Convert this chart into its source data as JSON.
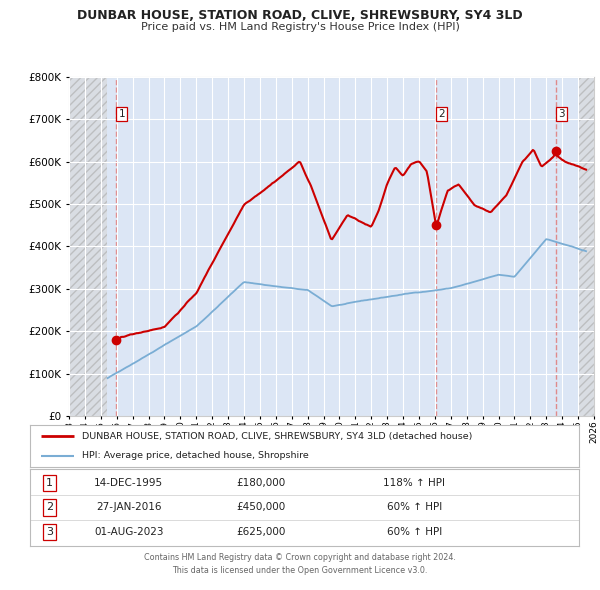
{
  "title": "DUNBAR HOUSE, STATION ROAD, CLIVE, SHREWSBURY, SY4 3LD",
  "subtitle": "Price paid vs. HM Land Registry's House Price Index (HPI)",
  "red_label": "DUNBAR HOUSE, STATION ROAD, CLIVE, SHREWSBURY, SY4 3LD (detached house)",
  "blue_label": "HPI: Average price, detached house, Shropshire",
  "sales": [
    {
      "num": 1,
      "date_label": "14-DEC-1995",
      "price": 180000,
      "hpi_pct": "118% ↑ HPI",
      "year": 1995.96
    },
    {
      "num": 2,
      "date_label": "27-JAN-2016",
      "price": 450000,
      "hpi_pct": "60% ↑ HPI",
      "year": 2016.07
    },
    {
      "num": 3,
      "date_label": "01-AUG-2023",
      "price": 625000,
      "hpi_pct": "60% ↑ HPI",
      "year": 2023.58
    }
  ],
  "footer1": "Contains HM Land Registry data © Crown copyright and database right 2024.",
  "footer2": "This data is licensed under the Open Government Licence v3.0.",
  "xmin": 1993.0,
  "xmax": 2026.0,
  "ymin": 0,
  "ymax": 800000,
  "yticks": [
    0,
    100000,
    200000,
    300000,
    400000,
    500000,
    600000,
    700000,
    800000
  ],
  "plot_bg": "#dce6f5",
  "hatch_bg": "#e8e8e8",
  "red_color": "#cc0000",
  "blue_color": "#7aadd4",
  "grid_color": "#ffffff",
  "dashed_line_color": "#e08080",
  "fig_bg": "#ffffff",
  "data_start_year": 1995.4,
  "data_end_year": 2025.0
}
